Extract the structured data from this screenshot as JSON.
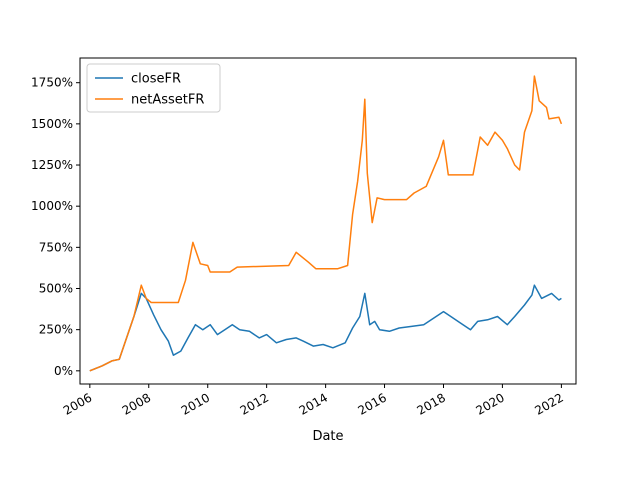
{
  "chart_data": {
    "type": "line",
    "title": "",
    "xlabel": "Date",
    "ylabel": "",
    "xlim": [
      "2005-09-01",
      "2022-07-01"
    ],
    "ylim": [
      -80,
      1900
    ],
    "x_ticks": [
      "2006",
      "2008",
      "2010",
      "2012",
      "2014",
      "2016",
      "2018",
      "2020",
      "2022"
    ],
    "y_ticks": [
      0,
      250,
      500,
      750,
      1000,
      1250,
      1500,
      1750
    ],
    "y_tick_labels": [
      "0%",
      "250%",
      "500%",
      "750%",
      "1000%",
      "1250%",
      "1500%",
      "1750%"
    ],
    "grid": false,
    "legend": "top-left",
    "series": [
      {
        "name": "closeFR",
        "color": "#1f77b4",
        "points": [
          [
            "2006-01-01",
            0
          ],
          [
            "2006-06-01",
            30
          ],
          [
            "2006-10-01",
            60
          ],
          [
            "2007-01-01",
            70
          ],
          [
            "2007-04-01",
            200
          ],
          [
            "2007-07-01",
            330
          ],
          [
            "2007-10-01",
            470
          ],
          [
            "2007-12-01",
            440
          ],
          [
            "2008-03-01",
            340
          ],
          [
            "2008-06-01",
            250
          ],
          [
            "2008-09-01",
            180
          ],
          [
            "2008-11-01",
            95
          ],
          [
            "2009-02-01",
            120
          ],
          [
            "2009-05-01",
            200
          ],
          [
            "2009-08-01",
            280
          ],
          [
            "2009-11-01",
            250
          ],
          [
            "2010-02-01",
            280
          ],
          [
            "2010-05-01",
            220
          ],
          [
            "2010-08-01",
            250
          ],
          [
            "2010-11-01",
            280
          ],
          [
            "2011-02-01",
            250
          ],
          [
            "2011-06-01",
            240
          ],
          [
            "2011-10-01",
            200
          ],
          [
            "2012-01-01",
            220
          ],
          [
            "2012-05-01",
            170
          ],
          [
            "2012-09-01",
            190
          ],
          [
            "2013-01-01",
            200
          ],
          [
            "2013-04-01",
            180
          ],
          [
            "2013-08-01",
            150
          ],
          [
            "2013-12-01",
            160
          ],
          [
            "2014-04-01",
            140
          ],
          [
            "2014-09-01",
            170
          ],
          [
            "2014-12-01",
            260
          ],
          [
            "2015-03-01",
            330
          ],
          [
            "2015-05-01",
            470
          ],
          [
            "2015-07-01",
            280
          ],
          [
            "2015-09-01",
            300
          ],
          [
            "2015-11-01",
            250
          ],
          [
            "2016-03-01",
            240
          ],
          [
            "2016-07-01",
            260
          ],
          [
            "2016-12-01",
            270
          ],
          [
            "2017-05-01",
            280
          ],
          [
            "2017-09-01",
            320
          ],
          [
            "2018-01-01",
            360
          ],
          [
            "2018-04-01",
            330
          ],
          [
            "2018-08-01",
            290
          ],
          [
            "2018-12-01",
            250
          ],
          [
            "2019-03-01",
            300
          ],
          [
            "2019-07-01",
            310
          ],
          [
            "2019-11-01",
            330
          ],
          [
            "2020-03-01",
            280
          ],
          [
            "2020-06-01",
            330
          ],
          [
            "2020-10-01",
            400
          ],
          [
            "2021-01-01",
            460
          ],
          [
            "2021-02-01",
            520
          ],
          [
            "2021-05-01",
            440
          ],
          [
            "2021-09-01",
            470
          ],
          [
            "2021-12-01",
            430
          ],
          [
            "2022-01-01",
            440
          ]
        ]
      },
      {
        "name": "netAssetFR",
        "color": "#ff7f0e",
        "points": [
          [
            "2006-01-01",
            0
          ],
          [
            "2006-06-01",
            30
          ],
          [
            "2006-10-01",
            60
          ],
          [
            "2007-01-01",
            70
          ],
          [
            "2007-04-01",
            200
          ],
          [
            "2007-07-01",
            330
          ],
          [
            "2007-10-01",
            520
          ],
          [
            "2007-12-01",
            440
          ],
          [
            "2008-02-01",
            415
          ],
          [
            "2009-01-01",
            415
          ],
          [
            "2009-04-01",
            550
          ],
          [
            "2009-07-01",
            780
          ],
          [
            "2009-10-01",
            650
          ],
          [
            "2010-01-01",
            640
          ],
          [
            "2010-02-01",
            600
          ],
          [
            "2010-10-01",
            600
          ],
          [
            "2011-01-01",
            630
          ],
          [
            "2012-10-01",
            640
          ],
          [
            "2013-01-01",
            720
          ],
          [
            "2013-06-01",
            660
          ],
          [
            "2013-09-01",
            620
          ],
          [
            "2014-06-01",
            620
          ],
          [
            "2014-10-01",
            640
          ],
          [
            "2014-12-01",
            950
          ],
          [
            "2015-02-01",
            1150
          ],
          [
            "2015-04-01",
            1400
          ],
          [
            "2015-05-01",
            1650
          ],
          [
            "2015-06-01",
            1200
          ],
          [
            "2015-08-01",
            900
          ],
          [
            "2015-10-01",
            1050
          ],
          [
            "2016-01-01",
            1040
          ],
          [
            "2016-10-01",
            1040
          ],
          [
            "2017-01-01",
            1080
          ],
          [
            "2017-06-01",
            1120
          ],
          [
            "2017-11-01",
            1300
          ],
          [
            "2018-01-01",
            1400
          ],
          [
            "2018-03-01",
            1190
          ],
          [
            "2019-01-01",
            1190
          ],
          [
            "2019-04-01",
            1420
          ],
          [
            "2019-07-01",
            1370
          ],
          [
            "2019-10-01",
            1450
          ],
          [
            "2020-01-01",
            1400
          ],
          [
            "2020-03-01",
            1350
          ],
          [
            "2020-06-01",
            1250
          ],
          [
            "2020-08-01",
            1220
          ],
          [
            "2020-10-01",
            1450
          ],
          [
            "2021-01-01",
            1580
          ],
          [
            "2021-02-01",
            1790
          ],
          [
            "2021-04-01",
            1640
          ],
          [
            "2021-07-01",
            1600
          ],
          [
            "2021-08-01",
            1530
          ],
          [
            "2021-12-01",
            1540
          ],
          [
            "2022-01-01",
            1500
          ]
        ]
      }
    ]
  }
}
